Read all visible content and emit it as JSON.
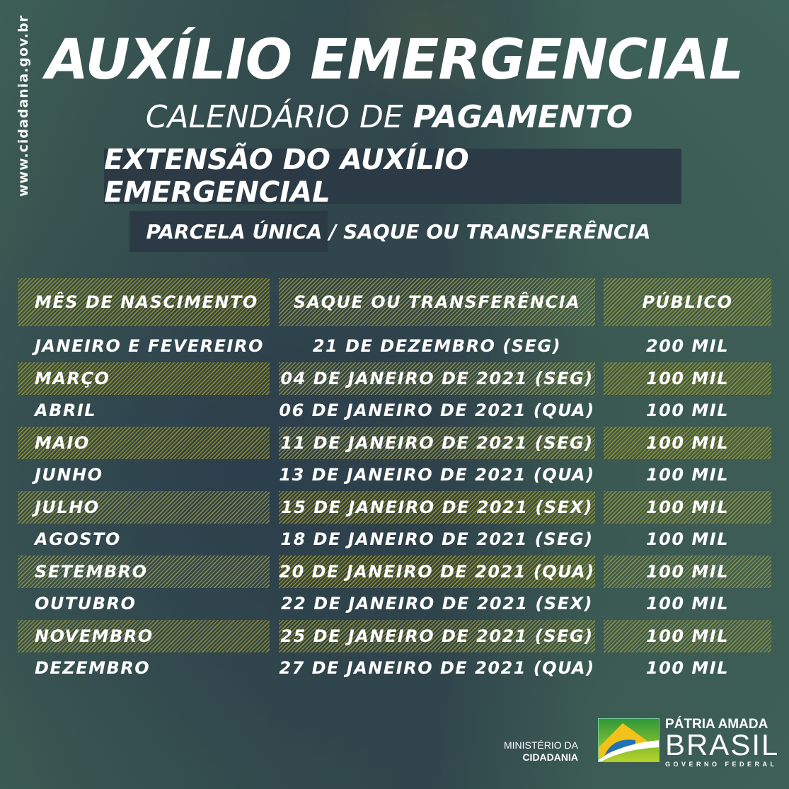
{
  "site": "www.cidadania.gov.br",
  "title": "AUXÍLIO EMERGENCIAL",
  "subtitle_light": "CALENDÁRIO DE ",
  "subtitle_bold": "PAGAMENTO",
  "banner": "EXTENSÃO DO AUXÍLIO EMERGENCIAL",
  "subbanner": "PARCELA ÚNICA / SAQUE OU TRANSFERÊNCIA",
  "table": {
    "headers": [
      "MÊS DE NASCIMENTO",
      "SAQUE OU TRANSFERÊNCIA",
      "PÚBLICO"
    ],
    "rows": [
      [
        "JANEIRO E FEVEREIRO",
        "21 DE DEZEMBRO (SEG)",
        "200 MIL"
      ],
      [
        "MARÇO",
        "04 DE JANEIRO DE 2021 (SEG)",
        "100 MIL"
      ],
      [
        "ABRIL",
        "06 DE JANEIRO DE 2021 (QUA)",
        "100 MIL"
      ],
      [
        "MAIO",
        "11 DE JANEIRO DE 2021 (SEG)",
        "100 MIL"
      ],
      [
        "JUNHO",
        "13 DE JANEIRO DE 2021 (QUA)",
        "100 MIL"
      ],
      [
        "JULHO",
        "15 DE JANEIRO DE 2021 (SEX)",
        "100 MIL"
      ],
      [
        "AGOSTO",
        "18 DE JANEIRO DE 2021 (SEG)",
        "100 MIL"
      ],
      [
        "SETEMBRO",
        "20 DE JANEIRO DE 2021 (QUA)",
        "100 MIL"
      ],
      [
        "OUTUBRO",
        "22 DE JANEIRO DE 2021 (SEX)",
        "100 MIL"
      ],
      [
        "NOVEMBRO",
        "25 DE JANEIRO DE 2021 (SEG)",
        "100 MIL"
      ],
      [
        "DEZEMBRO",
        "27 DE JANEIRO DE 2021 (QUA)",
        "100 MIL"
      ]
    ]
  },
  "footer": {
    "ministry_line1": "MINISTÉRIO DA",
    "ministry_line2": "CIDADANIA",
    "brand_line1": "PÁTRIA AMADA",
    "brand_line2": "BRASIL",
    "brand_line3": "GOVERNO FEDERAL"
  },
  "colors": {
    "background": "#3d5e55",
    "banner": "#2b3a44",
    "stripe": "#aaa028"
  }
}
